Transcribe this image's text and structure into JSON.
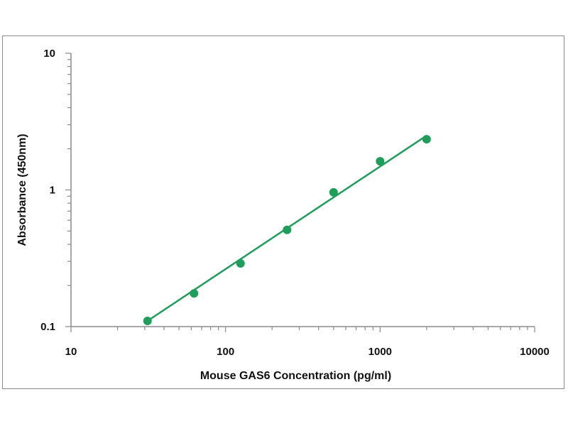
{
  "chart_data": {
    "type": "scatter",
    "xlabel": "Mouse GAS6 Concentration (pg/ml)",
    "ylabel": "Absorbance (450nm)",
    "x_scale": "log",
    "y_scale": "log",
    "xlim": [
      10,
      10000
    ],
    "ylim": [
      0.1,
      10
    ],
    "x_ticks": [
      "10",
      "100",
      "1000",
      "10000"
    ],
    "y_ticks": [
      "0.1",
      "1",
      "10"
    ],
    "grid": false,
    "legend": "none",
    "color": "#1e9e5a",
    "series": [
      {
        "points": [
          {
            "x": 31.25,
            "y": 0.11
          },
          {
            "x": 62.5,
            "y": 0.175
          },
          {
            "x": 125,
            "y": 0.29
          },
          {
            "x": 250,
            "y": 0.51
          },
          {
            "x": 500,
            "y": 0.96
          },
          {
            "x": 1000,
            "y": 1.62
          },
          {
            "x": 2000,
            "y": 2.35
          }
        ],
        "fit": [
          {
            "x": 31.25,
            "y": 0.11
          },
          {
            "x": 2000,
            "y": 2.5
          }
        ]
      }
    ]
  }
}
